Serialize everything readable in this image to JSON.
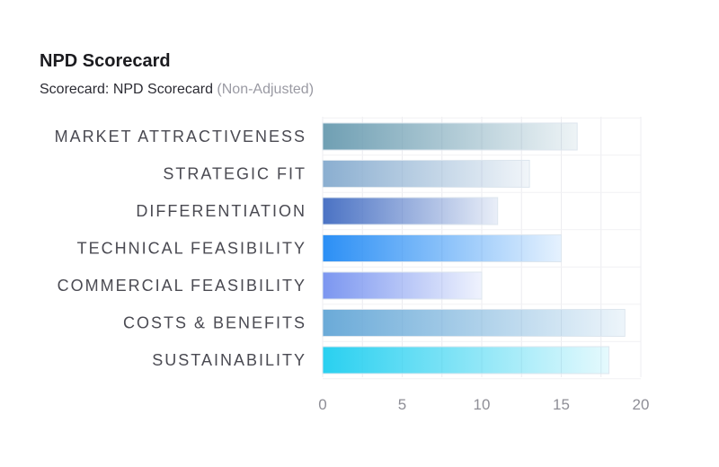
{
  "header": {
    "title": "NPD Scorecard",
    "subtitle_main": "Scorecard: NPD Scorecard",
    "subtitle_note": "(Non-Adjusted)"
  },
  "chart_data": {
    "type": "bar",
    "orientation": "horizontal",
    "categories": [
      "MARKET ATTRACTIVENESS",
      "STRATEGIC FIT",
      "DIFFERENTIATION",
      "TECHNICAL FEASIBILITY",
      "COMMERCIAL FEASIBILITY",
      "COSTS & BENEFITS",
      "SUSTAINABILITY"
    ],
    "values": [
      16,
      13,
      11,
      15,
      10,
      19,
      18
    ],
    "xlim": [
      0,
      20
    ],
    "xticks": [
      "0",
      "5",
      "10",
      "15",
      "20"
    ],
    "grid": true,
    "bar_colors": [
      "#6f9fb3",
      "#8aaed0",
      "#4a72c4",
      "#2b8ff5",
      "#7b96f0",
      "#6aaad8",
      "#29d0f0"
    ]
  }
}
